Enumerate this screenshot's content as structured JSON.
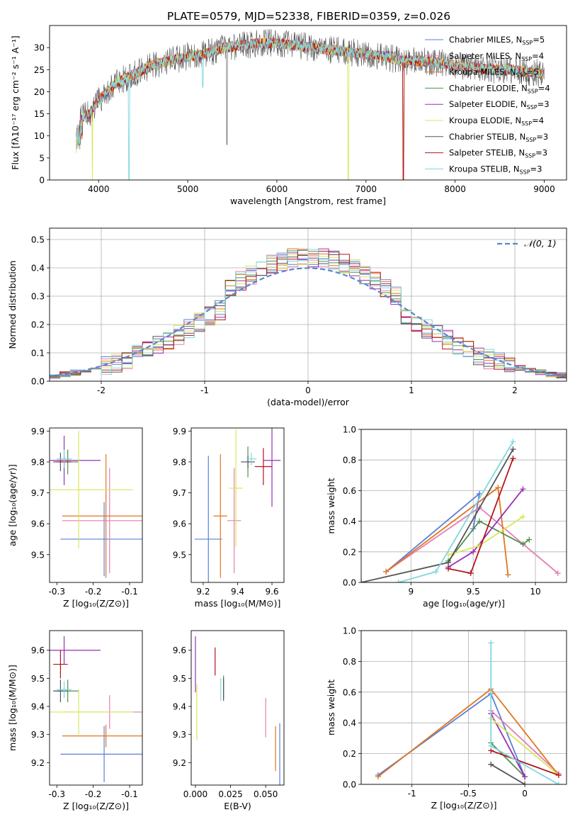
{
  "title": "PLATE=0579, MJD=52338, FIBERID=0359, z=0.026",
  "models": [
    {
      "name": "Chabrier MILES, N",
      "sub": "SSP",
      "suffix": "=5",
      "color": "#5b7fd6"
    },
    {
      "name": "Salpeter MILES, N",
      "sub": "SSP",
      "suffix": "=4",
      "color": "#e27fb4"
    },
    {
      "name": "Kroupa MILES, N",
      "sub": "SSP",
      "suffix": "=5",
      "color": "#e0761f"
    },
    {
      "name": "Chabrier ELODIE, N",
      "sub": "SSP",
      "suffix": "=4",
      "color": "#4f8f4f"
    },
    {
      "name": "Salpeter ELODIE, N",
      "sub": "SSP",
      "suffix": "=3",
      "color": "#9a2fb4"
    },
    {
      "name": "Kroupa ELODIE, N",
      "sub": "SSP",
      "suffix": "=4",
      "color": "#d9e65a"
    },
    {
      "name": "Chabrier STELIB, N",
      "sub": "SSP",
      "suffix": "=3",
      "color": "#555555"
    },
    {
      "name": "Salpeter STELIB, N",
      "sub": "SSP",
      "suffix": "=3",
      "color": "#b3141b"
    },
    {
      "name": "Kroupa STELIB, N",
      "sub": "SSP",
      "suffix": "=3",
      "color": "#7fd8de"
    }
  ],
  "chart_data": [
    {
      "id": "spectrum",
      "type": "line",
      "xlabel": "wavelength [Angstrom, rest frame]",
      "ylabel": "Flux [fλ10⁻¹⁷ erg cm⁻² s⁻¹ A⁻¹]",
      "xlim": [
        3450,
        9250
      ],
      "ylim": [
        0,
        35
      ],
      "xticks": [
        4000,
        5000,
        6000,
        7000,
        8000,
        9000
      ],
      "yticks": [
        0,
        5,
        10,
        15,
        20,
        25,
        30
      ],
      "grid": false,
      "legend": "top-right",
      "continuum": {
        "x": [
          3750,
          3800,
          3900,
          4000,
          4100,
          4200,
          4300,
          4400,
          4500,
          4600,
          4700,
          4800,
          5000,
          5200,
          5400,
          5600,
          5800,
          6000,
          6200,
          6400,
          6600,
          6800,
          7000,
          7200,
          7400,
          7600,
          7800,
          8000,
          8200,
          8400,
          8600,
          8800,
          9000
        ],
        "y": [
          12,
          14,
          15,
          18,
          20,
          22,
          23,
          24,
          25,
          26,
          26.5,
          27,
          28,
          28.5,
          30,
          30.5,
          31,
          31,
          30.5,
          30,
          29.5,
          29,
          28.5,
          28,
          27,
          27,
          26.5,
          26,
          25.5,
          25,
          25,
          24.5,
          24
        ]
      },
      "dips": [
        {
          "x": 4340,
          "model": 8,
          "to": 0
        },
        {
          "x": 3930,
          "model": 5,
          "to": 0
        },
        {
          "x": 6800,
          "model": 5,
          "to": 0
        },
        {
          "x": 7420,
          "model": 2,
          "to": 0
        },
        {
          "x": 7420,
          "model": 7,
          "to": 0
        },
        {
          "x": 5170,
          "model": 8,
          "to": 21
        },
        {
          "x": 5440,
          "model": 6,
          "to": 8
        }
      ]
    },
    {
      "id": "residuals",
      "type": "step",
      "xlabel": "(data-model)/error",
      "ylabel": "Normed distribution",
      "xlim": [
        -2.5,
        2.5
      ],
      "ylim": [
        0,
        0.54
      ],
      "xticks": [
        -2,
        -1,
        0,
        1,
        2
      ],
      "yticks": [
        0.0,
        0.1,
        0.2,
        0.3,
        0.4,
        0.5
      ],
      "grid": true,
      "legend": "top-right",
      "normal_label": "𝒩(0, 1)",
      "normal_color": "#5b86d1",
      "bin_width": 0.1
    },
    {
      "id": "age-vs-Z",
      "type": "errorbar",
      "xlabel": "Z [log₁₀(Z/Z⊙)]",
      "ylabel": "age  [log₁₀(age/yr)]",
      "xlim": [
        -0.32,
        -0.065
      ],
      "ylim": [
        9.41,
        9.91
      ],
      "xticks": [
        -0.3,
        -0.2,
        -0.1
      ],
      "yticks": [
        9.5,
        9.6,
        9.7,
        9.8,
        9.9
      ],
      "points": [
        {
          "model": 0,
          "x": -0.17,
          "y": 9.55,
          "xerr": 0.12,
          "yerr": 0.12
        },
        {
          "model": 1,
          "x": -0.155,
          "y": 9.61,
          "xerr": 0.13,
          "yerr": 0.17
        },
        {
          "model": 2,
          "x": -0.165,
          "y": 9.625,
          "xerr": 0.12,
          "yerr": 0.2
        },
        {
          "model": 3,
          "x": -0.27,
          "y": 9.8,
          "xerr": 0.03,
          "yerr": 0.04
        },
        {
          "model": 4,
          "x": -0.28,
          "y": 9.805,
          "xerr": 0.1,
          "yerr": 0.08
        },
        {
          "model": 5,
          "x": -0.24,
          "y": 9.71,
          "xerr": 0.15,
          "yerr": 0.19
        },
        {
          "model": 6,
          "x": -0.29,
          "y": 9.8,
          "xerr": 0.02,
          "yerr": 0.03
        },
        {
          "model": 7,
          "x": -0.28,
          "y": 9.8,
          "xerr": 0.02,
          "yerr": 0.02
        },
        {
          "model": 8,
          "x": -0.28,
          "y": 9.81,
          "xerr": 0.02,
          "yerr": 0.03
        }
      ]
    },
    {
      "id": "age-vs-mass",
      "type": "errorbar",
      "xlabel": "mass [log₁₀(M/M⊙)]",
      "ylabel": "",
      "xlim": [
        9.13,
        9.67
      ],
      "ylim": [
        9.41,
        9.91
      ],
      "xticks": [
        9.2,
        9.4,
        9.6
      ],
      "yticks": [
        9.5,
        9.6,
        9.7,
        9.8,
        9.9
      ],
      "points": [
        {
          "model": 0,
          "x": 9.23,
          "y": 9.55,
          "xerr": 0.08,
          "yerr": 0.27
        },
        {
          "model": 1,
          "x": 9.38,
          "y": 9.61,
          "xerr": 0.04,
          "yerr": 0.17
        },
        {
          "model": 2,
          "x": 9.3,
          "y": 9.625,
          "xerr": 0.04,
          "yerr": 0.2
        },
        {
          "model": 3,
          "x": 9.46,
          "y": 9.8,
          "xerr": 0.04,
          "yerr": 0.05
        },
        {
          "model": 4,
          "x": 9.6,
          "y": 9.805,
          "xerr": 0.05,
          "yerr": 0.15
        },
        {
          "model": 5,
          "x": 9.39,
          "y": 9.715,
          "xerr": 0.04,
          "yerr": 0.19
        },
        {
          "model": 6,
          "x": 9.46,
          "y": 9.8,
          "xerr": 0.04,
          "yerr": 0.02
        },
        {
          "model": 7,
          "x": 9.55,
          "y": 9.785,
          "xerr": 0.05,
          "yerr": 0.06
        },
        {
          "model": 8,
          "x": 9.48,
          "y": 9.81,
          "xerr": 0.03,
          "yerr": 0.02
        }
      ]
    },
    {
      "id": "weight-vs-age",
      "type": "line",
      "xlabel": "age  [log₁₀(age/yr)]",
      "ylabel": "mass weight",
      "xlim": [
        8.6,
        10.25
      ],
      "ylim": [
        0,
        1
      ],
      "xticks": [
        9.0,
        9.5,
        10.0
      ],
      "yticks": [
        0.0,
        0.2,
        0.4,
        0.6,
        0.8,
        1.0
      ],
      "grid": true,
      "series": [
        {
          "model": 0,
          "x": [
            8.8,
            9.55,
            9.5
          ],
          "y": [
            0.07,
            0.58,
            0.35
          ]
        },
        {
          "model": 1,
          "x": [
            8.8,
            9.55,
            10.18
          ],
          "y": [
            0.07,
            0.49,
            0.06
          ]
        },
        {
          "model": 2,
          "x": [
            8.8,
            9.7,
            9.78
          ],
          "y": [
            0.07,
            0.62,
            0.05
          ]
        },
        {
          "model": 3,
          "x": [
            9.3,
            9.55,
            9.9,
            9.95
          ],
          "y": [
            0.14,
            0.4,
            0.25,
            0.28
          ]
        },
        {
          "model": 4,
          "x": [
            9.3,
            9.5,
            9.9
          ],
          "y": [
            0.1,
            0.2,
            0.61
          ]
        },
        {
          "model": 5,
          "x": [
            9.3,
            9.55,
            9.9
          ],
          "y": [
            0.18,
            0.24,
            0.43
          ]
        },
        {
          "model": 6,
          "x": [
            8.6,
            9.3,
            9.82
          ],
          "y": [
            0.0,
            0.13,
            0.87
          ]
        },
        {
          "model": 7,
          "x": [
            9.3,
            9.48,
            9.82
          ],
          "y": [
            0.09,
            0.06,
            0.81
          ]
        },
        {
          "model": 8,
          "x": [
            8.9,
            9.2,
            9.82
          ],
          "y": [
            0.0,
            0.07,
            0.92
          ]
        }
      ]
    },
    {
      "id": "mass-vs-Z",
      "type": "errorbar",
      "xlabel": "Z [log₁₀(Z/Z⊙)]",
      "ylabel": "mass [log₁₀(M/M⊙)]",
      "xlim": [
        -0.32,
        -0.065
      ],
      "ylim": [
        9.12,
        9.67
      ],
      "xticks": [
        -0.3,
        -0.2,
        -0.1
      ],
      "yticks": [
        9.2,
        9.3,
        9.4,
        9.5,
        9.6
      ],
      "points": [
        {
          "model": 0,
          "x": -0.17,
          "y": 9.23,
          "xerr": 0.12,
          "yerr": 0.1
        },
        {
          "model": 1,
          "x": -0.155,
          "y": 9.38,
          "xerr": 0.13,
          "yerr": 0.06
        },
        {
          "model": 2,
          "x": -0.165,
          "y": 9.295,
          "xerr": 0.12,
          "yerr": 0.04
        },
        {
          "model": 3,
          "x": -0.27,
          "y": 9.455,
          "xerr": 0.03,
          "yerr": 0.04
        },
        {
          "model": 4,
          "x": -0.28,
          "y": 9.6,
          "xerr": 0.1,
          "yerr": 0.05
        },
        {
          "model": 5,
          "x": -0.24,
          "y": 9.38,
          "xerr": 0.15,
          "yerr": 0.08
        },
        {
          "model": 6,
          "x": -0.29,
          "y": 9.455,
          "xerr": 0.02,
          "yerr": 0.04
        },
        {
          "model": 7,
          "x": -0.29,
          "y": 9.55,
          "xerr": 0.02,
          "yerr": 0.05
        },
        {
          "model": 8,
          "x": -0.28,
          "y": 9.46,
          "xerr": 0.02,
          "yerr": 0.03
        }
      ]
    },
    {
      "id": "mass-vs-EBV",
      "type": "errorbar",
      "xlabel": "E(B-V)",
      "ylabel": "",
      "xlim": [
        -0.003,
        0.063
      ],
      "ylim": [
        9.12,
        9.67
      ],
      "xticks": [
        0.0,
        0.025,
        0.05
      ],
      "xticklabels": [
        "0.000",
        "0.025",
        "0.050"
      ],
      "yticks": [
        9.2,
        9.3,
        9.4,
        9.5,
        9.6
      ],
      "points": [
        {
          "model": 0,
          "x": 0.06,
          "y": 9.23,
          "xerr": 0,
          "yerr": 0.11
        },
        {
          "model": 1,
          "x": 0.05,
          "y": 9.36,
          "xerr": 0,
          "yerr": 0.07
        },
        {
          "model": 2,
          "x": 0.057,
          "y": 9.25,
          "xerr": 0,
          "yerr": 0.08
        },
        {
          "model": 3,
          "x": 0.02,
          "y": 9.47,
          "xerr": 0,
          "yerr": 0.04
        },
        {
          "model": 4,
          "x": 0.0,
          "y": 9.55,
          "xerr": 0,
          "yerr": 0.1
        },
        {
          "model": 5,
          "x": 0.001,
          "y": 9.38,
          "xerr": 0,
          "yerr": 0.1
        },
        {
          "model": 6,
          "x": 0.02,
          "y": 9.46,
          "xerr": 0,
          "yerr": 0.04
        },
        {
          "model": 7,
          "x": 0.014,
          "y": 9.56,
          "xerr": 0,
          "yerr": 0.05
        },
        {
          "model": 8,
          "x": 0.018,
          "y": 9.46,
          "xerr": 0,
          "yerr": 0.04
        }
      ]
    },
    {
      "id": "weight-vs-Z",
      "type": "line",
      "xlabel": "Z [log₁₀(Z/Z⊙)]",
      "ylabel": "mass weight",
      "xlim": [
        -1.45,
        0.37
      ],
      "ylim": [
        0,
        1
      ],
      "xticks": [
        -1.0,
        -0.5,
        0.0
      ],
      "yticks": [
        0.0,
        0.2,
        0.4,
        0.6,
        0.8,
        1.0
      ],
      "grid": true,
      "series": [
        {
          "model": 0,
          "x": [
            -1.3,
            -0.3,
            0.0
          ],
          "y": [
            0.06,
            0.59,
            0.05
          ]
        },
        {
          "model": 1,
          "x": [
            -0.3,
            0.3
          ],
          "y": [
            0.48,
            0.07
          ]
        },
        {
          "model": 2,
          "x": [
            -1.3,
            -0.3,
            0.3
          ],
          "y": [
            0.05,
            0.62,
            0.06
          ]
        },
        {
          "model": 3,
          "x": [
            -0.3,
            0.0
          ],
          "y": [
            0.27,
            0.05
          ]
        },
        {
          "model": 4,
          "x": [
            -0.3,
            0.0
          ],
          "y": [
            0.46,
            0.05
          ]
        },
        {
          "model": 5,
          "x": [
            -0.3,
            0.3
          ],
          "y": [
            0.43,
            0.06
          ]
        },
        {
          "model": 6,
          "x": [
            -0.3,
            0.0
          ],
          "y": [
            0.13,
            0.0
          ]
        },
        {
          "model": 7,
          "x": [
            -0.3,
            0.3
          ],
          "y": [
            0.22,
            0.06
          ]
        },
        {
          "model": 8,
          "x": [
            -0.3,
            -0.3,
            0.3
          ],
          "y": [
            0.92,
            0.25,
            0.0
          ]
        }
      ]
    }
  ]
}
